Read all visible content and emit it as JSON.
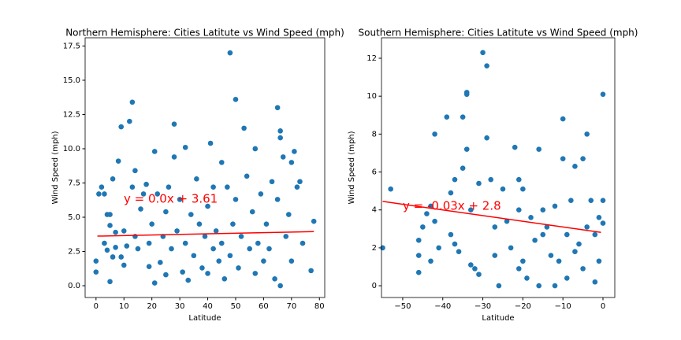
{
  "chart_data": [
    {
      "type": "scatter",
      "title": "Northern Hemisphere: Cities Latitute vs Wind Speed (mph)",
      "xlabel": "Latitude",
      "ylabel": "Wind Speed (mph)",
      "color": "#1f77b4",
      "x": [
        0,
        0,
        1,
        2,
        3,
        3,
        4,
        4,
        5,
        5,
        5,
        6,
        6,
        7,
        7,
        8,
        9,
        9,
        10,
        10,
        11,
        12,
        13,
        13,
        14,
        14,
        15,
        16,
        17,
        18,
        19,
        19,
        20,
        21,
        21,
        22,
        23,
        24,
        25,
        25,
        26,
        27,
        28,
        28,
        29,
        30,
        31,
        32,
        32,
        33,
        34,
        35,
        36,
        37,
        38,
        39,
        40,
        40,
        41,
        42,
        42,
        43,
        44,
        45,
        45,
        46,
        47,
        48,
        48,
        49,
        50,
        50,
        51,
        52,
        53,
        54,
        55,
        56,
        57,
        57,
        58,
        59,
        60,
        61,
        62,
        63,
        64,
        65,
        65,
        66,
        66,
        66,
        67,
        68,
        69,
        70,
        70,
        71,
        72,
        73,
        74,
        77,
        78
      ],
      "y": [
        1.0,
        1.8,
        6.7,
        7.2,
        6.7,
        3.1,
        2.6,
        5.2,
        5.2,
        0.3,
        4.4,
        7.8,
        2.1,
        3.9,
        2.8,
        9.1,
        11.6,
        2.1,
        4.0,
        1.5,
        2.9,
        12.0,
        13.4,
        7.2,
        8.4,
        3.6,
        2.7,
        5.6,
        6.7,
        7.4,
        3.1,
        1.4,
        4.5,
        9.8,
        0.2,
        6.7,
        1.7,
        3.6,
        5.4,
        0.8,
        7.2,
        2.7,
        11.8,
        9.4,
        4.0,
        6.3,
        1.0,
        10.1,
        3.1,
        0.4,
        5.2,
        2.2,
        7.8,
        4.5,
        1.3,
        3.6,
        5.8,
        0.9,
        10.4,
        7.2,
        2.7,
        4.0,
        1.8,
        9.0,
        3.1,
        0.5,
        7.2,
        17.0,
        2.2,
        4.5,
        13.6,
        6.3,
        1.3,
        3.6,
        11.5,
        8.0,
        2.7,
        5.4,
        10.0,
        0.9,
        3.1,
        6.7,
        1.8,
        4.5,
        2.7,
        7.6,
        0.5,
        13.0,
        6.3,
        11.3,
        10.8,
        0.0,
        9.4,
        3.6,
        5.2,
        9.0,
        1.8,
        9.8,
        7.2,
        7.6,
        3.1,
        1.1,
        4.7
      ],
      "xlim": [
        -3.9,
        81.9
      ],
      "ylim": [
        -0.86,
        18.1
      ],
      "xticks": [
        0,
        10,
        20,
        30,
        40,
        50,
        60,
        70,
        80
      ],
      "yticks": [
        {
          "value": 0,
          "label": "0.0"
        },
        {
          "value": 2.5,
          "label": "2.5"
        },
        {
          "value": 5,
          "label": "5.0"
        },
        {
          "value": 7.5,
          "label": "7.5"
        },
        {
          "value": 10,
          "label": "10.0"
        },
        {
          "value": 12.5,
          "label": "12.5"
        },
        {
          "value": 15,
          "label": "15.0"
        },
        {
          "value": 17.5,
          "label": "17.5"
        }
      ],
      "line": {
        "x": [
          0.5,
          78
        ],
        "y": [
          3.62,
          3.95
        ],
        "color": "#ff0000"
      },
      "annotation": "y = 0.0x + 3.61"
    },
    {
      "type": "scatter",
      "title": "Southern Hemisphere: Cities Latitute vs Wind Speed (mph)",
      "xlabel": "Latitude",
      "ylabel": "Wind Speed (mph)",
      "color": "#1f77b4",
      "x": [
        -55,
        -53,
        -46,
        -46,
        -46,
        -45,
        -43,
        -43,
        -42,
        -42,
        -41,
        -39,
        -38,
        -38,
        -37,
        -36,
        -35,
        -35,
        -34,
        -34,
        -34,
        -33,
        -33,
        -32,
        -31,
        -31,
        -30,
        -29,
        -29,
        -28,
        -27,
        -27,
        -25,
        -24,
        -23,
        -22,
        -21,
        -21,
        -21,
        -20,
        -19,
        -18,
        -17,
        -16,
        -16,
        -15,
        -15,
        -14,
        -13,
        -12,
        -11,
        -10,
        -10,
        -9,
        -9,
        -8,
        -7,
        -7,
        -6,
        -5,
        -5,
        -4,
        -4,
        -3,
        -2,
        -2,
        -1,
        -1,
        0,
        0,
        0,
        -26,
        -37,
        -44,
        -20,
        -12
      ],
      "y": [
        2.0,
        5.1,
        0.7,
        1.6,
        2.4,
        3.1,
        4.2,
        1.3,
        8.0,
        3.4,
        2.0,
        8.9,
        4.9,
        2.7,
        5.6,
        1.8,
        6.2,
        8.9,
        10.2,
        10.1,
        7.2,
        4.0,
        1.1,
        0.9,
        5.4,
        0.6,
        12.3,
        11.6,
        7.8,
        5.6,
        3.1,
        1.6,
        5.1,
        3.4,
        2.0,
        7.3,
        5.6,
        4.0,
        0.9,
        1.3,
        0.4,
        3.6,
        2.4,
        7.2,
        0.0,
        4.0,
        2.7,
        3.1,
        1.6,
        4.2,
        1.3,
        8.8,
        6.7,
        2.7,
        0.4,
        4.5,
        1.8,
        6.3,
        2.2,
        6.7,
        0.9,
        8.0,
        3.1,
        4.5,
        0.2,
        2.7,
        1.3,
        3.6,
        10.1,
        4.5,
        3.3,
        0.0,
        2.2,
        3.8,
        5.1,
        0.0
      ],
      "xlim": [
        -55.3,
        2.95
      ],
      "ylim": [
        -0.62,
        13.08
      ],
      "xticks": [
        {
          "value": -50,
          "label": "−50"
        },
        {
          "value": -40,
          "label": "−40"
        },
        {
          "value": -30,
          "label": "−30"
        },
        {
          "value": -20,
          "label": "−20"
        },
        {
          "value": -10,
          "label": "−10"
        },
        0
      ],
      "yticks": [
        0,
        2,
        4,
        6,
        8,
        10,
        12
      ],
      "line": {
        "x": [
          -55,
          -0.5
        ],
        "y": [
          4.45,
          2.815
        ],
        "color": "#ff0000"
      },
      "annotation": "y = -0.03x + 2.8"
    }
  ]
}
